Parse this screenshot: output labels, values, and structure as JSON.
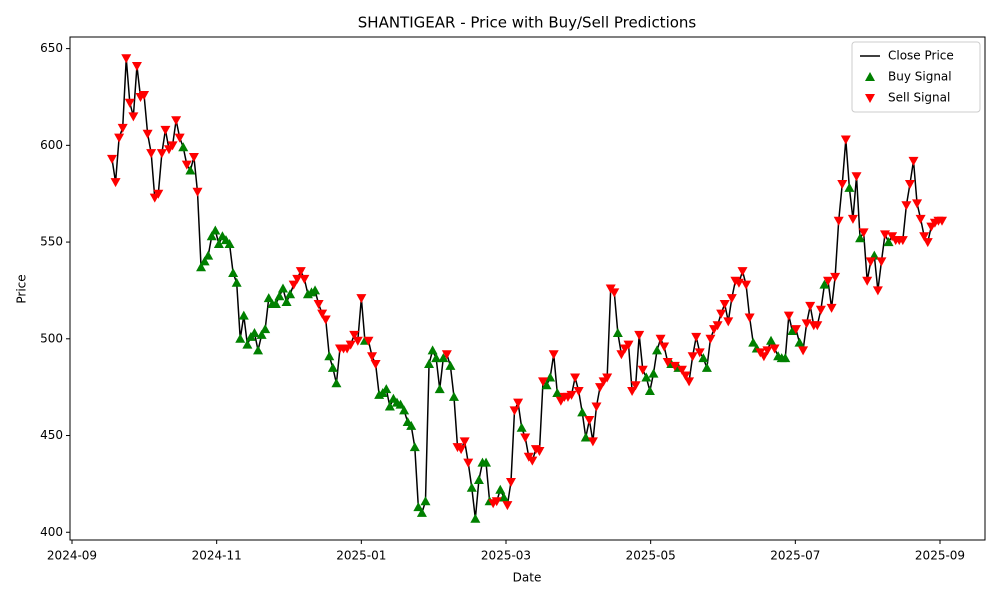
{
  "chart_data": {
    "type": "line",
    "title": "SHANTIGEAR - Price with Buy/Sell Predictions",
    "x_label": "Date",
    "y_label": "Price",
    "xticks": [
      "2024-09",
      "2024-11",
      "2025-01",
      "2025-03",
      "2025-05",
      "2025-07",
      "2025-09"
    ],
    "ylim": [
      396,
      656
    ],
    "yticks": [
      400,
      450,
      500,
      550,
      600,
      650
    ],
    "legend": "upper right",
    "series": [
      {
        "name": "Close Price",
        "color": "#000000",
        "marker": "line",
        "values": [
          593,
          581,
          604,
          609,
          645,
          622,
          615,
          641,
          625,
          626,
          606,
          596,
          573,
          575,
          596,
          608,
          598,
          600,
          613,
          604,
          599,
          590,
          587,
          594,
          576,
          537,
          540,
          543,
          553,
          556,
          549,
          553,
          551,
          549,
          534,
          529,
          500,
          512,
          497,
          501,
          503,
          494,
          502,
          505,
          521,
          518,
          518,
          522,
          526,
          519,
          523,
          528,
          531,
          535,
          531,
          523,
          524,
          525,
          518,
          513,
          510,
          491,
          485,
          477,
          495,
          495,
          495,
          497,
          502,
          499,
          521,
          499,
          499,
          491,
          487,
          471,
          472,
          474,
          465,
          469,
          467,
          466,
          463,
          457,
          455,
          444,
          413,
          410,
          416,
          487,
          494,
          490,
          474,
          490,
          492,
          486,
          470,
          444,
          443,
          447,
          436,
          423,
          407,
          427,
          436,
          436,
          416,
          415,
          416,
          422,
          418,
          414,
          426,
          463,
          467,
          454,
          449,
          439,
          437,
          443,
          442,
          478,
          476,
          480,
          492,
          472,
          468,
          470,
          470,
          471,
          480,
          473,
          462,
          449,
          458,
          447,
          465,
          475,
          478,
          480,
          526,
          524,
          503,
          492,
          495,
          497,
          473,
          476,
          502,
          484,
          480,
          473,
          482,
          494,
          500,
          496,
          488,
          487,
          486,
          485,
          484,
          481,
          478,
          491,
          501,
          493,
          490,
          485,
          500,
          505,
          507,
          513,
          518,
          509,
          521,
          530,
          529,
          535,
          528,
          511,
          498,
          495,
          493,
          491,
          494,
          499,
          495,
          491,
          490,
          490,
          512,
          504,
          505,
          498,
          494,
          508,
          517,
          507,
          507,
          515,
          528,
          530,
          516,
          532,
          561,
          580,
          603,
          578,
          562,
          584,
          552,
          555,
          530,
          540,
          543,
          525,
          540,
          554,
          550,
          553,
          551,
          551,
          551,
          569,
          580,
          592,
          570,
          562,
          553,
          550,
          558,
          560,
          561,
          561
        ]
      },
      {
        "name": "Buy Signal",
        "color": "#008000",
        "marker": "up",
        "values": [
          null,
          null,
          null,
          null,
          null,
          null,
          null,
          null,
          null,
          null,
          null,
          null,
          null,
          null,
          null,
          null,
          null,
          null,
          null,
          null,
          599,
          null,
          587,
          null,
          null,
          537,
          540,
          543,
          553,
          556,
          549,
          553,
          551,
          549,
          534,
          529,
          500,
          512,
          497,
          501,
          503,
          494,
          502,
          505,
          521,
          518,
          518,
          522,
          526,
          519,
          523,
          null,
          null,
          null,
          null,
          523,
          524,
          525,
          null,
          null,
          null,
          491,
          485,
          477,
          null,
          null,
          null,
          null,
          null,
          null,
          null,
          499,
          null,
          null,
          null,
          471,
          472,
          474,
          465,
          469,
          467,
          466,
          463,
          457,
          455,
          444,
          413,
          410,
          416,
          487,
          494,
          490,
          474,
          490,
          null,
          486,
          470,
          null,
          null,
          null,
          null,
          423,
          407,
          427,
          436,
          436,
          416,
          null,
          null,
          422,
          418,
          null,
          null,
          null,
          null,
          454,
          null,
          null,
          null,
          null,
          null,
          null,
          476,
          480,
          null,
          472,
          null,
          null,
          null,
          null,
          null,
          null,
          462,
          449,
          null,
          null,
          null,
          null,
          null,
          null,
          null,
          null,
          503,
          null,
          null,
          null,
          null,
          null,
          null,
          null,
          480,
          473,
          482,
          494,
          null,
          null,
          null,
          487,
          null,
          485,
          null,
          null,
          null,
          null,
          null,
          null,
          490,
          485,
          null,
          null,
          null,
          null,
          null,
          null,
          null,
          null,
          null,
          null,
          null,
          null,
          498,
          495,
          null,
          null,
          null,
          499,
          null,
          491,
          490,
          490,
          null,
          504,
          null,
          498,
          null,
          null,
          null,
          null,
          null,
          null,
          528,
          null,
          null,
          null,
          null,
          null,
          null,
          578,
          null,
          null,
          552,
          null,
          null,
          null,
          543,
          null,
          null,
          null,
          550,
          null,
          null,
          null,
          null,
          null,
          null,
          null,
          null,
          null,
          null,
          null,
          null,
          null,
          null,
          null
        ]
      },
      {
        "name": "Sell Signal",
        "color": "#ff0000",
        "marker": "down",
        "values": [
          593,
          581,
          604,
          609,
          645,
          622,
          615,
          641,
          625,
          626,
          606,
          596,
          573,
          575,
          596,
          608,
          598,
          600,
          613,
          604,
          null,
          590,
          null,
          594,
          576,
          null,
          null,
          null,
          null,
          null,
          null,
          null,
          null,
          null,
          null,
          null,
          null,
          null,
          null,
          null,
          null,
          null,
          null,
          null,
          null,
          null,
          null,
          null,
          null,
          null,
          null,
          528,
          531,
          535,
          531,
          null,
          null,
          null,
          518,
          513,
          510,
          null,
          null,
          null,
          495,
          495,
          495,
          497,
          502,
          499,
          521,
          null,
          499,
          491,
          487,
          null,
          null,
          null,
          null,
          null,
          null,
          null,
          null,
          null,
          null,
          null,
          null,
          null,
          null,
          null,
          null,
          null,
          null,
          null,
          492,
          null,
          null,
          444,
          443,
          447,
          436,
          null,
          null,
          null,
          null,
          null,
          null,
          415,
          416,
          null,
          null,
          414,
          426,
          463,
          467,
          null,
          449,
          439,
          437,
          443,
          442,
          478,
          null,
          null,
          492,
          null,
          468,
          470,
          470,
          471,
          480,
          473,
          null,
          null,
          458,
          447,
          465,
          475,
          478,
          480,
          526,
          524,
          null,
          492,
          495,
          497,
          473,
          476,
          502,
          484,
          null,
          null,
          null,
          null,
          500,
          496,
          488,
          null,
          486,
          null,
          484,
          481,
          478,
          491,
          501,
          493,
          null,
          null,
          500,
          505,
          507,
          513,
          518,
          509,
          521,
          530,
          529,
          535,
          528,
          511,
          null,
          null,
          493,
          491,
          494,
          null,
          495,
          null,
          null,
          null,
          512,
          null,
          505,
          null,
          494,
          508,
          517,
          507,
          507,
          515,
          null,
          530,
          516,
          532,
          561,
          580,
          603,
          null,
          562,
          584,
          null,
          555,
          530,
          540,
          null,
          525,
          540,
          554,
          null,
          553,
          551,
          551,
          551,
          569,
          580,
          592,
          570,
          562,
          553,
          550,
          558,
          560,
          561,
          561
        ]
      }
    ]
  }
}
